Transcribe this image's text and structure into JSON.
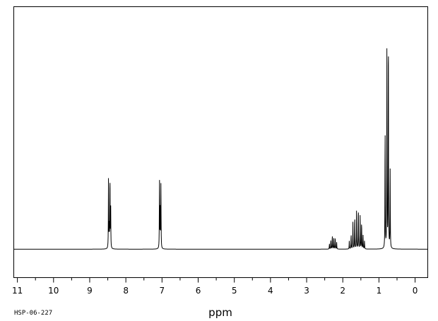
{
  "chart_data": {
    "type": "line",
    "xlabel": "ppm",
    "x_reversed": true,
    "xlim": [
      11.1,
      -0.35
    ],
    "ylim": [
      -0.12,
      1.0
    ],
    "grid": false,
    "legend": "none",
    "x_ticks": [
      "11",
      "10",
      "9",
      "8",
      "7",
      "6",
      "5",
      "4",
      "3",
      "2",
      "1",
      "0"
    ],
    "sample_id": "HSP-06-227",
    "colors": {
      "line": "#000000",
      "frame": "#000000",
      "background": "#ffffff"
    },
    "peaks": [
      {
        "ppm": 8.48,
        "height": 0.3
      },
      {
        "ppm": 8.46,
        "height": 0.1
      },
      {
        "ppm": 8.44,
        "height": 0.32
      },
      {
        "ppm": 8.42,
        "height": 0.18
      },
      {
        "ppm": 7.07,
        "height": 0.305
      },
      {
        "ppm": 7.05,
        "height": 0.16
      },
      {
        "ppm": 7.03,
        "height": 0.27
      },
      {
        "ppm": 2.37,
        "height": 0.022
      },
      {
        "ppm": 2.33,
        "height": 0.038
      },
      {
        "ppm": 2.29,
        "height": 0.06
      },
      {
        "ppm": 2.25,
        "height": 0.045
      },
      {
        "ppm": 2.21,
        "height": 0.052
      },
      {
        "ppm": 2.17,
        "height": 0.03
      },
      {
        "ppm": 1.82,
        "height": 0.035
      },
      {
        "ppm": 1.77,
        "height": 0.065
      },
      {
        "ppm": 1.72,
        "height": 0.115
      },
      {
        "ppm": 1.67,
        "height": 0.145
      },
      {
        "ppm": 1.62,
        "height": 0.16
      },
      {
        "ppm": 1.57,
        "height": 0.185
      },
      {
        "ppm": 1.52,
        "height": 0.14
      },
      {
        "ppm": 1.48,
        "height": 0.12
      },
      {
        "ppm": 1.44,
        "height": 0.06
      },
      {
        "ppm": 1.4,
        "height": 0.035
      },
      {
        "ppm": 0.83,
        "height": 0.53
      },
      {
        "ppm": 0.78,
        "height": 0.85
      },
      {
        "ppm": 0.74,
        "height": 1.0
      },
      {
        "ppm": 0.69,
        "height": 0.33
      }
    ]
  }
}
